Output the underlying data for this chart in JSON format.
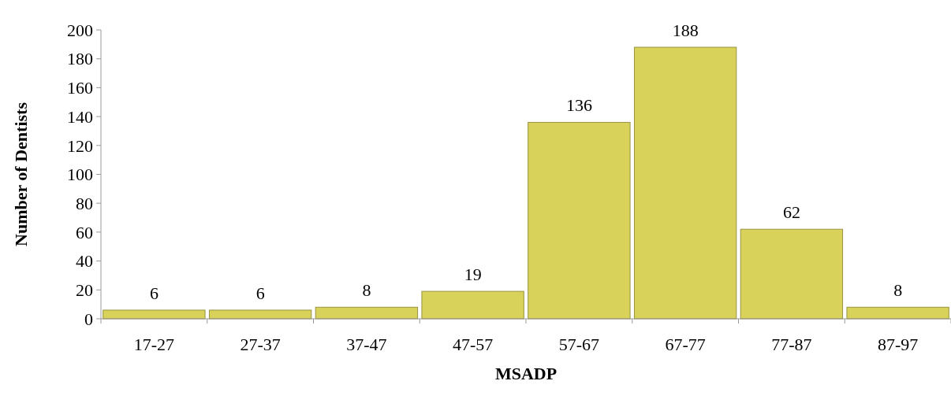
{
  "chart_data": {
    "type": "bar",
    "xlabel": "MSADP",
    "ylabel": "Number of Dentists",
    "categories": [
      "17-27",
      "27-37",
      "37-47",
      "47-57",
      "57-67",
      "67-77",
      "77-87",
      "87-97"
    ],
    "values": [
      6,
      6,
      8,
      19,
      136,
      188,
      62,
      8
    ],
    "color": "#d9d25a",
    "ylim": [
      0,
      200
    ],
    "yticks": [
      0,
      20,
      40,
      60,
      80,
      100,
      120,
      140,
      160,
      180,
      200
    ],
    "data_labels": true
  }
}
